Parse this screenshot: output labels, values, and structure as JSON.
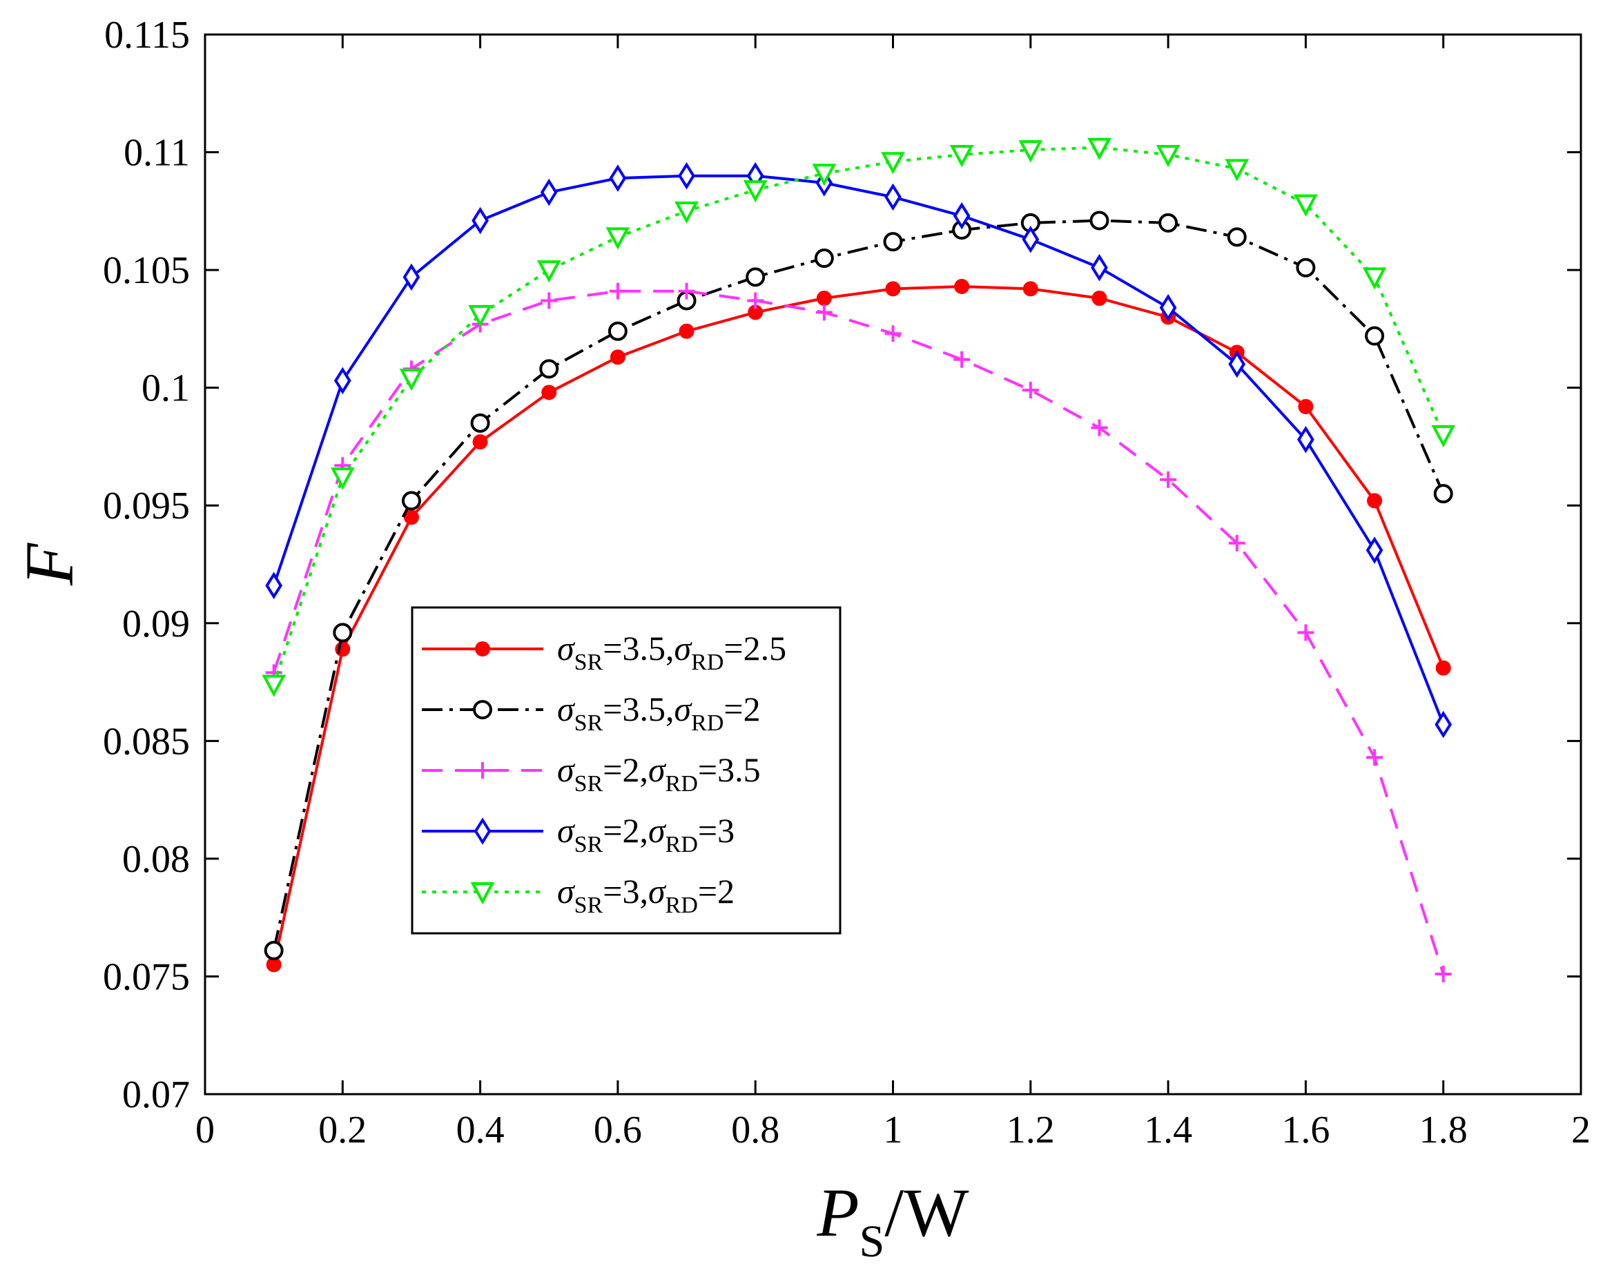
{
  "chart_data": {
    "type": "line",
    "title": "",
    "xlabel": {
      "main": "P",
      "sub": "S",
      "rest": "/W"
    },
    "ylabel": "F",
    "xlim": [
      0,
      2
    ],
    "ylim": [
      0.07,
      0.115
    ],
    "grid": false,
    "legend_position": "lower-left",
    "x_ticks": [
      "0",
      "0.2",
      "0.4",
      "0.6",
      "0.8",
      "1",
      "1.2",
      "1.4",
      "1.6",
      "1.8",
      "2"
    ],
    "y_ticks": [
      "0.07",
      "0.075",
      "0.08",
      "0.085",
      "0.09",
      "0.095",
      "0.1",
      "0.105",
      "0.11",
      "0.115"
    ],
    "x": [
      0.1,
      0.2,
      0.3,
      0.4,
      0.5,
      0.6,
      0.7,
      0.8,
      0.9,
      1.0,
      1.1,
      1.2,
      1.3,
      1.4,
      1.5,
      1.6,
      1.7,
      1.8
    ],
    "series": [
      {
        "name": "σSR=3.5,σRD=2.5",
        "legend": {
          "s1": "σ",
          "sub1": "SR",
          "v1": "=3.5,",
          "s2": "σ",
          "sub2": "RD",
          "v2": "=2.5"
        },
        "color": "#ff0000",
        "dash": "solid",
        "marker": "dot",
        "values": [
          0.0755,
          0.0889,
          0.0945,
          0.0977,
          0.0998,
          0.1013,
          0.1024,
          0.1032,
          0.1038,
          0.1042,
          0.1043,
          0.1042,
          0.1038,
          0.103,
          0.1015,
          0.0992,
          0.0952,
          0.0881
        ]
      },
      {
        "name": "σSR=3.5,σRD=2",
        "legend": {
          "s1": "σ",
          "sub1": "SR",
          "v1": "=3.5,",
          "s2": "σ",
          "sub2": "RD",
          "v2": "=2"
        },
        "color": "#000000",
        "dash": "dashdot",
        "marker": "circle",
        "values": [
          0.0761,
          0.0896,
          0.0952,
          0.0985,
          0.1008,
          0.1024,
          0.1037,
          0.1047,
          0.1055,
          0.1062,
          0.1067,
          0.107,
          0.1071,
          0.107,
          0.1064,
          0.1051,
          0.1022,
          0.0955
        ]
      },
      {
        "name": "σSR=2,σRD=3.5",
        "legend": {
          "s1": "σ",
          "sub1": "SR",
          "v1": "=2,",
          "s2": "σ",
          "sub2": "RD",
          "v2": "=3.5"
        },
        "color": "#ff33ff",
        "dash": "dashed",
        "marker": "plus",
        "values": [
          0.0879,
          0.0967,
          0.1008,
          0.1027,
          0.1037,
          0.1041,
          0.1041,
          0.1037,
          0.1032,
          0.1023,
          0.1012,
          0.0999,
          0.0983,
          0.0961,
          0.0934,
          0.0896,
          0.0843,
          0.0751
        ]
      },
      {
        "name": "σSR=2,σRD=3",
        "legend": {
          "s1": "σ",
          "sub1": "SR",
          "v1": "=2,",
          "s2": "σ",
          "sub2": "RD",
          "v2": "=3"
        },
        "color": "#0000ff",
        "dash": "solid",
        "marker": "diamond",
        "values": [
          0.0916,
          0.1003,
          0.1047,
          0.1071,
          0.1083,
          0.1089,
          0.109,
          0.109,
          0.1087,
          0.1081,
          0.1073,
          0.1063,
          0.1051,
          0.1034,
          0.101,
          0.0978,
          0.0931,
          0.0857
        ]
      },
      {
        "name": "σSR=3,σRD=2",
        "legend": {
          "s1": "σ",
          "sub1": "SR",
          "v1": "=3,",
          "s2": "σ",
          "sub2": "RD",
          "v2": "=2"
        },
        "color": "#00ee00",
        "dash": "dotted",
        "marker": "triangle-down",
        "values": [
          0.0874,
          0.0962,
          0.1004,
          0.1031,
          0.105,
          0.1064,
          0.1075,
          0.1084,
          0.1091,
          0.1096,
          0.1099,
          0.1101,
          0.1102,
          0.1099,
          0.1093,
          0.1078,
          0.1047,
          0.098
        ]
      }
    ]
  }
}
